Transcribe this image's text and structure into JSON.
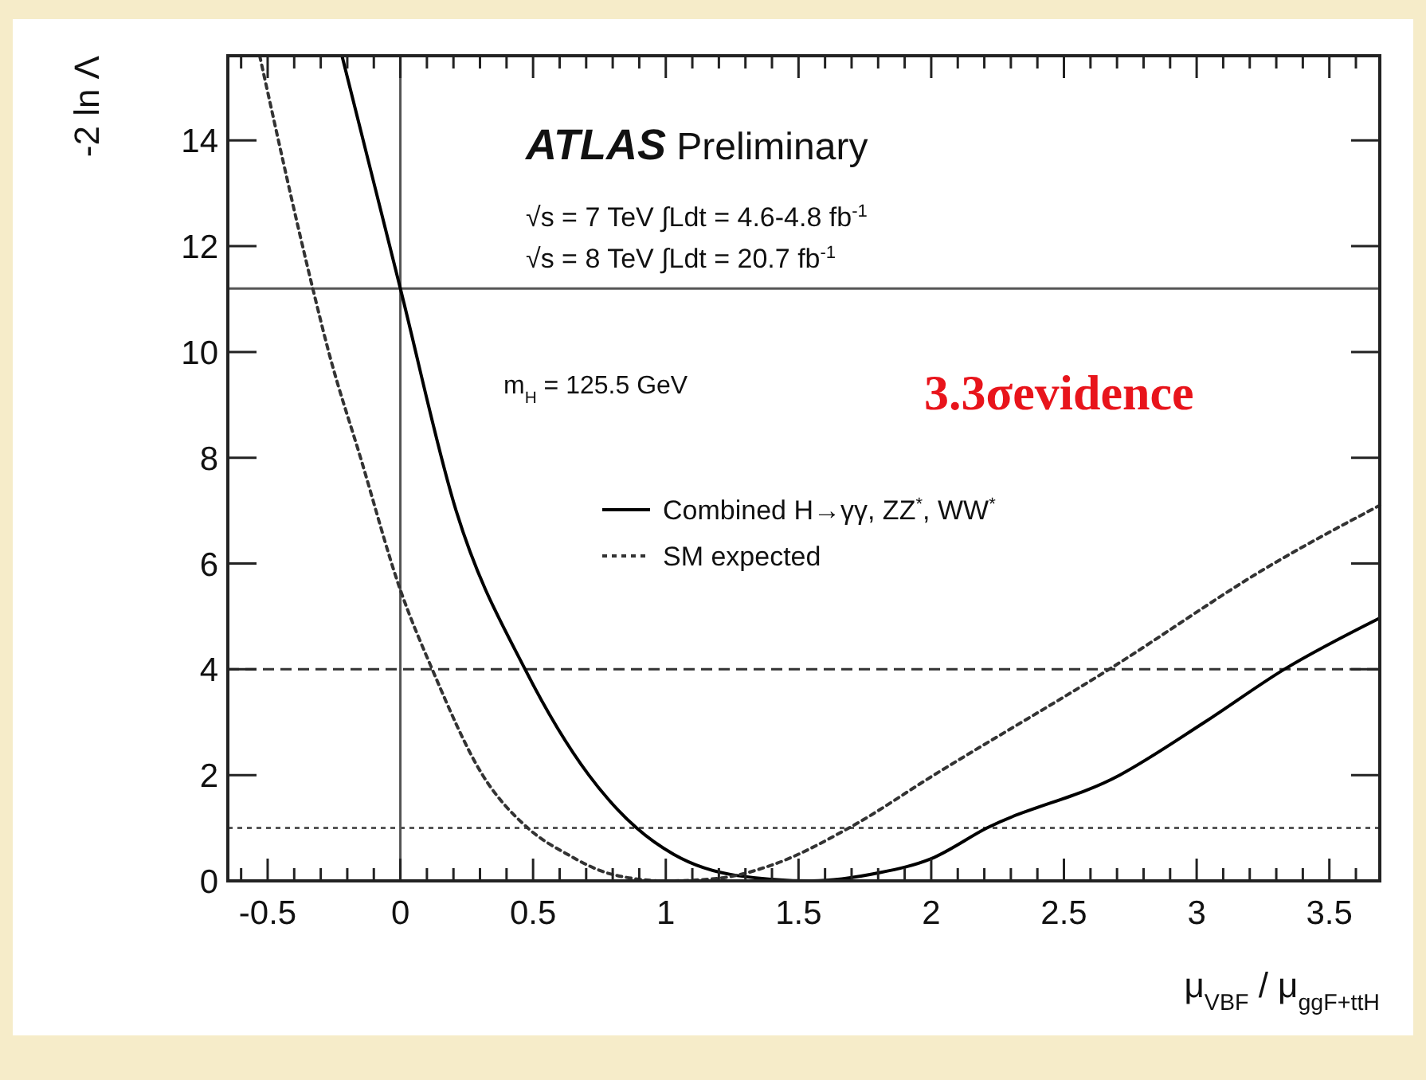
{
  "chart_data": {
    "type": "line",
    "xlabel": "μ$_{VBF}$ / μ$_{ggF+ttH}$",
    "ylabel": "-2 ln Λ",
    "annotations": [
      "ATLAS Preliminary",
      "√s = 7 TeV  ∫Ldt = 4.6-4.8 fb$^{-1}$",
      "√s = 8 TeV  ∫Ldt = 20.7 fb$^{-1}$",
      "m$_{H}$ = 125.5 GeV",
      "3.3σevidence"
    ],
    "xlim": [
      -0.65,
      3.69
    ],
    "ylim": [
      0,
      15.6
    ],
    "xticks": [
      {
        "value": -0.6,
        "label": null
      },
      -0.5,
      {
        "value": -0.4,
        "label": null
      },
      {
        "value": -0.3,
        "label": null
      },
      {
        "value": -0.2,
        "label": null
      },
      {
        "value": -0.1,
        "label": null
      },
      0,
      {
        "value": 0.1,
        "label": null
      },
      {
        "value": 0.2,
        "label": null
      },
      {
        "value": 0.3,
        "label": null
      },
      {
        "value": 0.4,
        "label": null
      },
      0.5,
      {
        "value": 0.6,
        "label": null
      },
      {
        "value": 0.7,
        "label": null
      },
      {
        "value": 0.8,
        "label": null
      },
      {
        "value": 0.9,
        "label": null
      },
      1,
      {
        "value": 1.1,
        "label": null
      },
      {
        "value": 1.2,
        "label": null
      },
      {
        "value": 1.3,
        "label": null
      },
      {
        "value": 1.4,
        "label": null
      },
      1.5,
      {
        "value": 1.6,
        "label": null
      },
      {
        "value": 1.7,
        "label": null
      },
      {
        "value": 1.8,
        "label": null
      },
      {
        "value": 1.9,
        "label": null
      },
      2,
      {
        "value": 2.1,
        "label": null
      },
      {
        "value": 2.2,
        "label": null
      },
      {
        "value": 2.3,
        "label": null
      },
      {
        "value": 2.4,
        "label": null
      },
      2.5,
      {
        "value": 2.6,
        "label": null
      },
      {
        "value": 2.7,
        "label": null
      },
      {
        "value": 2.8,
        "label": null
      },
      {
        "value": 2.9,
        "label": null
      },
      3,
      {
        "value": 3.1,
        "label": null
      },
      {
        "value": 3.2,
        "label": null
      },
      {
        "value": 3.3,
        "label": null
      },
      {
        "value": 3.4,
        "label": null
      },
      3.5,
      {
        "value": 3.6,
        "label": null
      }
    ],
    "yticks": [
      0,
      2,
      4,
      6,
      8,
      10,
      12,
      14
    ],
    "legend": "right",
    "ref_lines": [
      {
        "axis": "x",
        "value": 0,
        "color": "#555555",
        "line_style": "solid"
      },
      {
        "axis": "y",
        "value": 11.2,
        "color": "#555555",
        "line_style": "solid"
      },
      {
        "axis": "y",
        "value": 4,
        "color": "#333333",
        "line_style": "dashed"
      },
      {
        "axis": "y",
        "value": 1,
        "color": "#555555",
        "line_style": "dotted"
      }
    ],
    "series": [
      {
        "name": "Combined H→γγ, ZZ$^{*}$, WW$^{*}$",
        "color": "#000000",
        "line_style": "solid",
        "x": [
          -0.22,
          -0.1,
          0,
          0.21,
          0.47,
          0.71,
          0.89,
          1.03,
          1.27,
          1.55,
          1.8,
          2.0,
          2.21,
          2.71,
          3.03,
          3.33,
          3.69
        ],
        "values": [
          15.6,
          13.2,
          11.2,
          7.0,
          4,
          2,
          1,
          0.5,
          0.1,
          0,
          0.15,
          0.42,
          1,
          2,
          3,
          4,
          4.97
        ]
      },
      {
        "name": "SM expected",
        "color": "#333333",
        "line_style": "dotted",
        "x": [
          -0.53,
          -0.33,
          -0.27,
          -0.15,
          0,
          0.12,
          0.31,
          0.48,
          0.63,
          0.8,
          1.0,
          1.2,
          1.4,
          1.69,
          2.01,
          2.67,
          3.29,
          3.69
        ],
        "values": [
          15.6,
          11.2,
          10,
          8,
          5.5,
          4,
          2,
          1,
          0.5,
          0.12,
          0,
          0.05,
          0.3,
          1,
          2,
          4,
          6,
          7.1
        ]
      }
    ]
  }
}
